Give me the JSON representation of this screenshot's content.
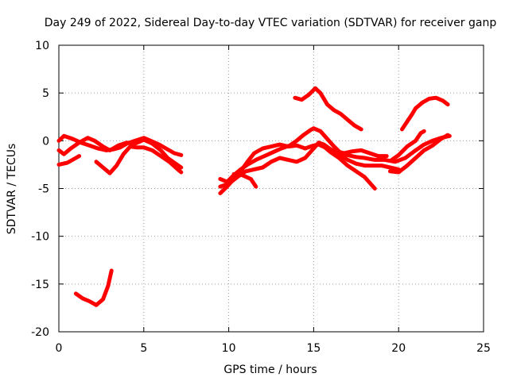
{
  "chart_data": {
    "type": "scatter",
    "title": "Day 249 of 2022, Sidereal Day-to-day VTEC variation (SDTVAR) for receiver ganp",
    "xlabel": "GPS time / hours",
    "ylabel": "SDTVAR / TECUs",
    "xlim": [
      0,
      25
    ],
    "ylim": [
      -20,
      10
    ],
    "xticks": [
      "0",
      "5",
      "10",
      "15",
      "20",
      "25"
    ],
    "yticks": [
      "10",
      "5",
      "0",
      "-5",
      "-10",
      "-15",
      "-20"
    ],
    "grid": true,
    "series_color": "#ff0000",
    "series": [
      {
        "name": "seg1",
        "points": [
          [
            0.0,
            -1.0
          ],
          [
            0.3,
            -1.4
          ],
          [
            0.7,
            -0.8
          ],
          [
            1.2,
            -0.2
          ],
          [
            1.7,
            0.3
          ],
          [
            2.1,
            0.0
          ],
          [
            2.6,
            -0.6
          ],
          [
            3.0,
            -1.0
          ],
          [
            3.5,
            -0.5
          ],
          [
            4.0,
            -0.2
          ],
          [
            4.5,
            -0.3
          ],
          [
            5.0,
            0.1
          ],
          [
            5.5,
            -0.3
          ],
          [
            6.0,
            -1.0
          ],
          [
            6.4,
            -1.8
          ],
          [
            6.8,
            -2.3
          ],
          [
            7.2,
            -2.8
          ]
        ]
      },
      {
        "name": "seg2",
        "points": [
          [
            0.0,
            0.0
          ],
          [
            0.3,
            0.5
          ],
          [
            0.8,
            0.2
          ],
          [
            1.3,
            -0.2
          ],
          [
            1.8,
            -0.5
          ],
          [
            2.3,
            -0.8
          ],
          [
            2.8,
            -1.0
          ],
          [
            3.2,
            -0.9
          ],
          [
            3.6,
            -0.7
          ],
          [
            4.0,
            -0.3
          ],
          [
            4.5,
            0.0
          ],
          [
            5.0,
            0.3
          ],
          [
            5.4,
            0.0
          ],
          [
            5.9,
            -0.4
          ],
          [
            6.3,
            -0.8
          ],
          [
            6.8,
            -1.3
          ],
          [
            7.2,
            -1.5
          ]
        ]
      },
      {
        "name": "seg3",
        "points": [
          [
            0.0,
            -2.5
          ],
          [
            0.5,
            -2.3
          ],
          [
            1.0,
            -1.8
          ],
          [
            1.2,
            -1.6
          ]
        ]
      },
      {
        "name": "seg4",
        "points": [
          [
            2.2,
            -2.2
          ],
          [
            2.6,
            -2.8
          ],
          [
            3.0,
            -3.4
          ],
          [
            3.4,
            -2.6
          ],
          [
            3.8,
            -1.4
          ],
          [
            4.2,
            -0.6
          ],
          [
            4.6,
            -0.7
          ],
          [
            5.0,
            -0.7
          ],
          [
            5.5,
            -1.0
          ],
          [
            6.0,
            -1.6
          ],
          [
            6.5,
            -2.2
          ],
          [
            7.0,
            -3.0
          ],
          [
            7.2,
            -3.3
          ]
        ]
      },
      {
        "name": "seg5",
        "points": [
          [
            1.0,
            -16.0
          ],
          [
            1.4,
            -16.5
          ],
          [
            1.8,
            -16.8
          ],
          [
            2.2,
            -17.2
          ],
          [
            2.6,
            -16.6
          ],
          [
            2.9,
            -15.2
          ],
          [
            3.1,
            -13.6
          ]
        ]
      },
      {
        "name": "seg6",
        "points": [
          [
            9.5,
            -4.0
          ],
          [
            9.9,
            -4.3
          ],
          [
            10.3,
            -3.6
          ],
          [
            10.7,
            -3.0
          ],
          [
            11.1,
            -2.5
          ],
          [
            11.6,
            -2.0
          ],
          [
            12.1,
            -1.6
          ],
          [
            12.6,
            -1.2
          ],
          [
            13.1,
            -0.8
          ],
          [
            13.6,
            -0.5
          ],
          [
            14.0,
            0.0
          ],
          [
            14.4,
            0.6
          ],
          [
            14.8,
            1.1
          ],
          [
            15.0,
            1.3
          ],
          [
            15.4,
            1.0
          ],
          [
            15.8,
            0.2
          ],
          [
            16.2,
            -0.6
          ],
          [
            16.6,
            -1.3
          ],
          [
            17.0,
            -1.5
          ],
          [
            17.5,
            -1.7
          ],
          [
            18.0,
            -1.8
          ],
          [
            18.6,
            -2.0
          ],
          [
            19.2,
            -2.0
          ],
          [
            19.8,
            -2.2
          ],
          [
            20.4,
            -1.8
          ],
          [
            21.0,
            -1.0
          ],
          [
            21.5,
            -0.4
          ],
          [
            22.0,
            0.0
          ],
          [
            22.5,
            0.3
          ],
          [
            23.0,
            0.5
          ]
        ]
      },
      {
        "name": "seg7",
        "points": [
          [
            9.5,
            -5.5
          ],
          [
            9.9,
            -4.8
          ],
          [
            10.3,
            -4.0
          ],
          [
            10.7,
            -3.2
          ],
          [
            11.1,
            -2.2
          ],
          [
            11.5,
            -1.3
          ],
          [
            12.0,
            -0.8
          ],
          [
            12.5,
            -0.6
          ],
          [
            13.0,
            -0.4
          ],
          [
            13.5,
            -0.6
          ],
          [
            14.0,
            -0.5
          ],
          [
            14.5,
            -0.8
          ],
          [
            15.0,
            -0.5
          ],
          [
            15.3,
            -0.4
          ],
          [
            15.8,
            -0.8
          ],
          [
            16.3,
            -1.1
          ],
          [
            16.8,
            -1.3
          ],
          [
            17.3,
            -1.1
          ],
          [
            17.8,
            -1.0
          ],
          [
            18.3,
            -1.3
          ],
          [
            18.8,
            -1.6
          ],
          [
            19.3,
            -1.6
          ]
        ]
      },
      {
        "name": "seg8",
        "points": [
          [
            9.5,
            -4.8
          ],
          [
            10.0,
            -4.5
          ],
          [
            10.5,
            -3.8
          ],
          [
            11.0,
            -3.2
          ],
          [
            11.5,
            -3.0
          ],
          [
            12.0,
            -2.8
          ],
          [
            12.5,
            -2.2
          ],
          [
            13.0,
            -1.8
          ],
          [
            13.5,
            -2.0
          ],
          [
            14.0,
            -2.2
          ],
          [
            14.5,
            -1.8
          ],
          [
            15.0,
            -0.8
          ],
          [
            15.3,
            -0.2
          ],
          [
            15.6,
            -0.4
          ],
          [
            16.0,
            -0.9
          ],
          [
            16.5,
            -1.4
          ],
          [
            17.0,
            -2.0
          ],
          [
            17.5,
            -2.4
          ],
          [
            18.0,
            -2.6
          ],
          [
            18.5,
            -2.6
          ],
          [
            19.0,
            -2.6
          ],
          [
            19.5,
            -2.8
          ],
          [
            20.0,
            -3.0
          ]
        ]
      },
      {
        "name": "seg9",
        "points": [
          [
            10.3,
            -3.5
          ],
          [
            10.8,
            -3.6
          ],
          [
            11.3,
            -4.0
          ],
          [
            11.6,
            -4.8
          ]
        ]
      },
      {
        "name": "seg10",
        "points": [
          [
            15.6,
            -0.6
          ],
          [
            16.0,
            -1.2
          ],
          [
            16.5,
            -1.8
          ],
          [
            17.0,
            -2.6
          ],
          [
            17.5,
            -3.2
          ],
          [
            18.0,
            -3.8
          ],
          [
            18.6,
            -5.0
          ]
        ]
      },
      {
        "name": "seg11",
        "points": [
          [
            13.9,
            4.5
          ],
          [
            14.3,
            4.3
          ],
          [
            14.7,
            4.8
          ],
          [
            15.1,
            5.5
          ],
          [
            15.4,
            5.0
          ],
          [
            15.8,
            3.8
          ],
          [
            16.2,
            3.2
          ],
          [
            16.6,
            2.8
          ],
          [
            17.0,
            2.2
          ],
          [
            17.4,
            1.6
          ],
          [
            17.8,
            1.2
          ]
        ]
      },
      {
        "name": "seg12",
        "points": [
          [
            19.6,
            -2.0
          ],
          [
            20.0,
            -1.5
          ],
          [
            20.5,
            -0.6
          ],
          [
            21.0,
            0.0
          ],
          [
            21.3,
            0.8
          ],
          [
            21.5,
            1.0
          ]
        ]
      },
      {
        "name": "seg13",
        "points": [
          [
            19.5,
            -3.2
          ],
          [
            20.0,
            -3.3
          ],
          [
            20.5,
            -2.6
          ],
          [
            21.0,
            -1.8
          ],
          [
            21.5,
            -1.0
          ],
          [
            22.0,
            -0.5
          ],
          [
            22.5,
            0.2
          ],
          [
            22.8,
            0.5
          ],
          [
            22.9,
            0.6
          ]
        ]
      },
      {
        "name": "seg14",
        "points": [
          [
            20.2,
            1.2
          ],
          [
            20.5,
            2.0
          ],
          [
            20.8,
            2.8
          ],
          [
            21.0,
            3.4
          ],
          [
            21.4,
            4.0
          ],
          [
            21.8,
            4.4
          ],
          [
            22.2,
            4.5
          ],
          [
            22.6,
            4.2
          ],
          [
            22.9,
            3.8
          ]
        ]
      }
    ]
  }
}
